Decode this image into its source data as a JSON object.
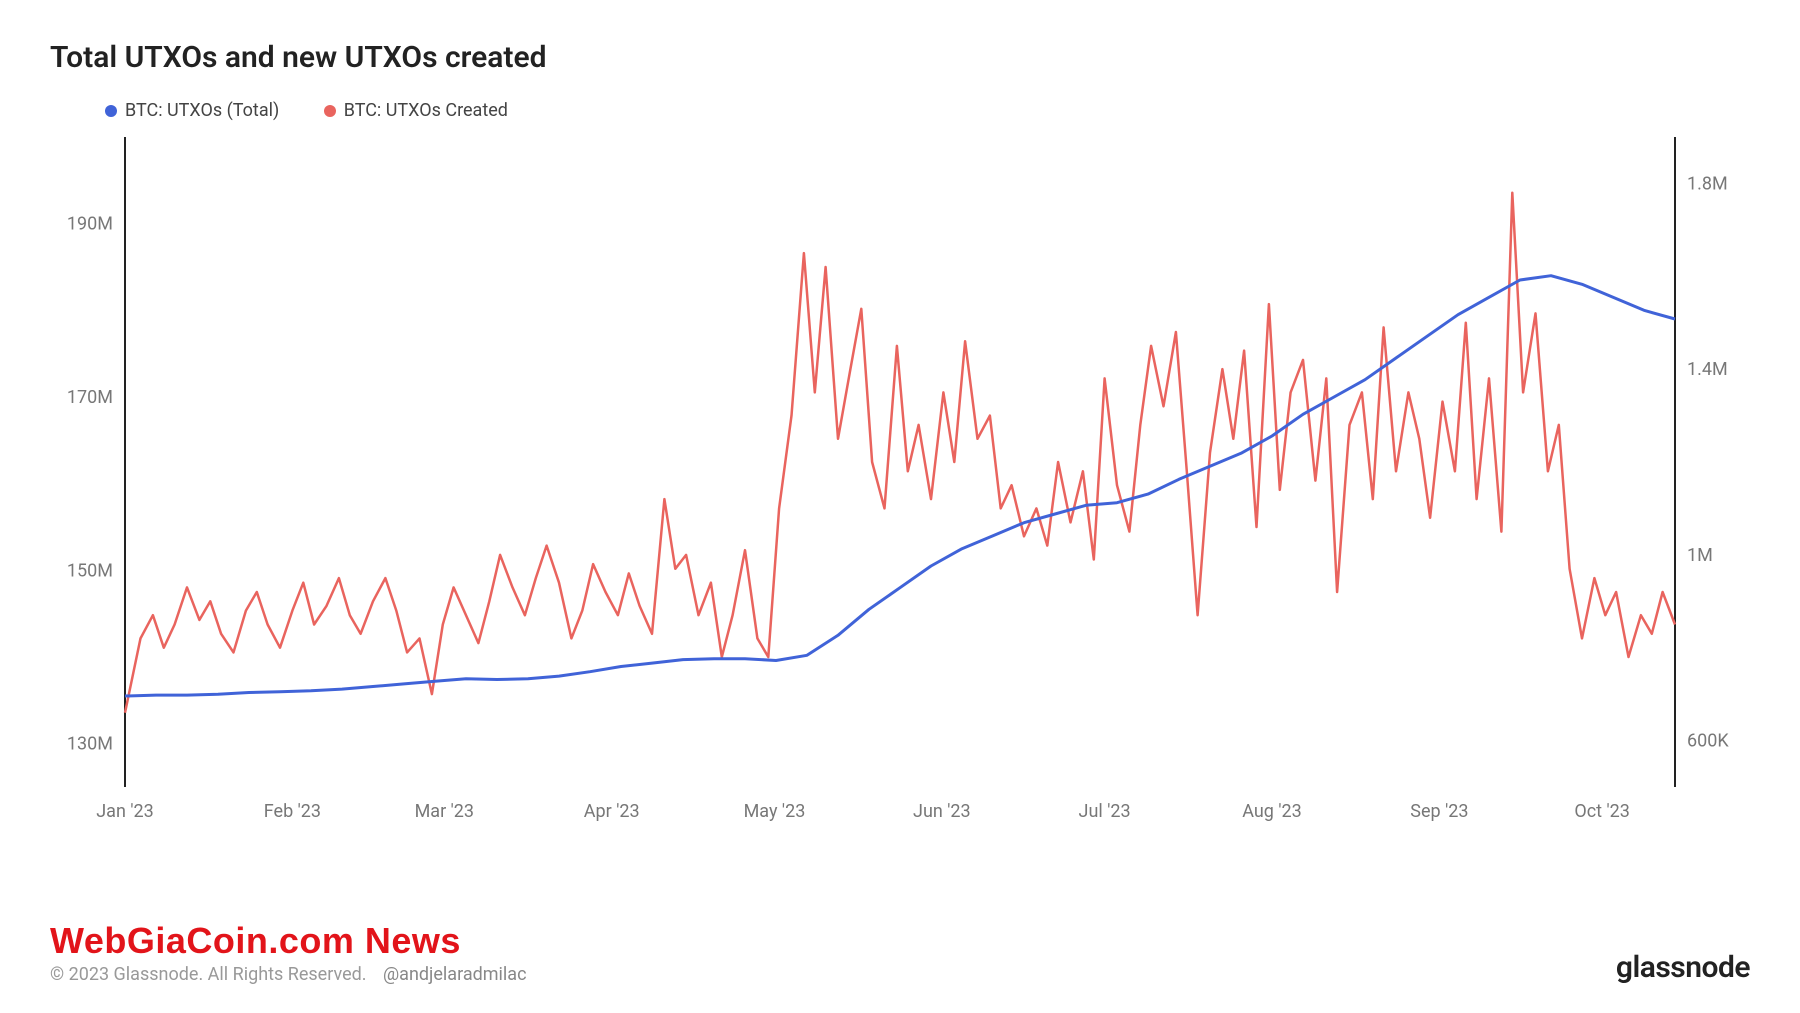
{
  "title": "Total UTXOs and new UTXOs created",
  "legend": {
    "series1": {
      "label": "BTC: UTXOs (Total)",
      "color": "#4063d8"
    },
    "series2": {
      "label": "BTC: UTXOs Created",
      "color": "#e9645e"
    }
  },
  "footer": {
    "overlay": "WebGiaCoin.com News",
    "copyright": "© 2023 Glassnode. All Rights Reserved.",
    "handle": "@andjelaradmilac",
    "brand": "glassnode"
  },
  "chart": {
    "type": "line-dual-axis",
    "background": "#ffffff",
    "axis_color": "#222222",
    "grid_color": "#eeeeee",
    "tick_color": "#777777",
    "label_fontsize": 18,
    "line_width_total": 3,
    "line_width_created": 2.5,
    "x": {
      "ticks": [
        "Jan '23",
        "Feb '23",
        "Mar '23",
        "Apr '23",
        "May '23",
        "Jun '23",
        "Jul '23",
        "Aug '23",
        "Sep '23",
        "Oct '23"
      ],
      "tick_positions": [
        0,
        0.108,
        0.206,
        0.314,
        0.419,
        0.527,
        0.632,
        0.74,
        0.848,
        0.953
      ]
    },
    "y_left": {
      "min": 125000000,
      "max": 200000000,
      "ticks": [
        130000000,
        150000000,
        170000000,
        190000000
      ],
      "tick_labels": [
        "130M",
        "150M",
        "170M",
        "190M"
      ]
    },
    "y_right": {
      "min": 500000,
      "max": 1900000,
      "ticks": [
        600000,
        1000000,
        1400000,
        1800000
      ],
      "tick_labels": [
        "600K",
        "1M",
        "1.4M",
        "1.8M"
      ]
    },
    "series_total": {
      "color": "#4063d8",
      "points": [
        [
          0.0,
          135500000
        ],
        [
          0.02,
          135600000
        ],
        [
          0.04,
          135600000
        ],
        [
          0.06,
          135700000
        ],
        [
          0.08,
          135900000
        ],
        [
          0.1,
          136000000
        ],
        [
          0.12,
          136100000
        ],
        [
          0.14,
          136300000
        ],
        [
          0.16,
          136600000
        ],
        [
          0.18,
          136900000
        ],
        [
          0.2,
          137200000
        ],
        [
          0.22,
          137500000
        ],
        [
          0.24,
          137400000
        ],
        [
          0.26,
          137500000
        ],
        [
          0.28,
          137800000
        ],
        [
          0.3,
          138300000
        ],
        [
          0.32,
          138900000
        ],
        [
          0.34,
          139300000
        ],
        [
          0.36,
          139700000
        ],
        [
          0.38,
          139800000
        ],
        [
          0.4,
          139800000
        ],
        [
          0.42,
          139600000
        ],
        [
          0.44,
          140200000
        ],
        [
          0.46,
          142500000
        ],
        [
          0.48,
          145500000
        ],
        [
          0.5,
          148000000
        ],
        [
          0.52,
          150500000
        ],
        [
          0.54,
          152500000
        ],
        [
          0.56,
          154000000
        ],
        [
          0.58,
          155500000
        ],
        [
          0.6,
          156500000
        ],
        [
          0.62,
          157500000
        ],
        [
          0.64,
          157800000
        ],
        [
          0.66,
          158800000
        ],
        [
          0.68,
          160500000
        ],
        [
          0.7,
          162000000
        ],
        [
          0.72,
          163500000
        ],
        [
          0.74,
          165500000
        ],
        [
          0.76,
          168000000
        ],
        [
          0.78,
          170000000
        ],
        [
          0.8,
          172000000
        ],
        [
          0.82,
          174500000
        ],
        [
          0.84,
          177000000
        ],
        [
          0.86,
          179500000
        ],
        [
          0.88,
          181500000
        ],
        [
          0.9,
          183500000
        ],
        [
          0.92,
          184000000
        ],
        [
          0.94,
          183000000
        ],
        [
          0.96,
          181500000
        ],
        [
          0.98,
          180000000
        ],
        [
          1.0,
          179000000
        ]
      ]
    },
    "series_created": {
      "color": "#e9645e",
      "points": [
        [
          0.0,
          660000
        ],
        [
          0.01,
          820000
        ],
        [
          0.018,
          870000
        ],
        [
          0.025,
          800000
        ],
        [
          0.032,
          850000
        ],
        [
          0.04,
          930000
        ],
        [
          0.048,
          860000
        ],
        [
          0.055,
          900000
        ],
        [
          0.062,
          830000
        ],
        [
          0.07,
          790000
        ],
        [
          0.078,
          880000
        ],
        [
          0.085,
          920000
        ],
        [
          0.092,
          850000
        ],
        [
          0.1,
          800000
        ],
        [
          0.108,
          880000
        ],
        [
          0.115,
          940000
        ],
        [
          0.122,
          850000
        ],
        [
          0.13,
          890000
        ],
        [
          0.138,
          950000
        ],
        [
          0.145,
          870000
        ],
        [
          0.152,
          830000
        ],
        [
          0.16,
          900000
        ],
        [
          0.168,
          950000
        ],
        [
          0.175,
          880000
        ],
        [
          0.182,
          790000
        ],
        [
          0.19,
          820000
        ],
        [
          0.198,
          700000
        ],
        [
          0.205,
          850000
        ],
        [
          0.212,
          930000
        ],
        [
          0.22,
          870000
        ],
        [
          0.228,
          810000
        ],
        [
          0.235,
          900000
        ],
        [
          0.242,
          1000000
        ],
        [
          0.25,
          930000
        ],
        [
          0.258,
          870000
        ],
        [
          0.265,
          950000
        ],
        [
          0.272,
          1020000
        ],
        [
          0.28,
          940000
        ],
        [
          0.288,
          820000
        ],
        [
          0.295,
          880000
        ],
        [
          0.302,
          980000
        ],
        [
          0.31,
          920000
        ],
        [
          0.318,
          870000
        ],
        [
          0.325,
          960000
        ],
        [
          0.332,
          890000
        ],
        [
          0.34,
          830000
        ],
        [
          0.348,
          1120000
        ],
        [
          0.355,
          970000
        ],
        [
          0.362,
          1000000
        ],
        [
          0.37,
          870000
        ],
        [
          0.378,
          940000
        ],
        [
          0.385,
          780000
        ],
        [
          0.392,
          870000
        ],
        [
          0.4,
          1010000
        ],
        [
          0.408,
          820000
        ],
        [
          0.415,
          780000
        ],
        [
          0.422,
          1100000
        ],
        [
          0.43,
          1300000
        ],
        [
          0.438,
          1650000
        ],
        [
          0.445,
          1350000
        ],
        [
          0.452,
          1620000
        ],
        [
          0.46,
          1250000
        ],
        [
          0.468,
          1400000
        ],
        [
          0.475,
          1530000
        ],
        [
          0.482,
          1200000
        ],
        [
          0.49,
          1100000
        ],
        [
          0.498,
          1450000
        ],
        [
          0.505,
          1180000
        ],
        [
          0.512,
          1280000
        ],
        [
          0.52,
          1120000
        ],
        [
          0.528,
          1350000
        ],
        [
          0.535,
          1200000
        ],
        [
          0.542,
          1460000
        ],
        [
          0.55,
          1250000
        ],
        [
          0.558,
          1300000
        ],
        [
          0.565,
          1100000
        ],
        [
          0.572,
          1150000
        ],
        [
          0.58,
          1040000
        ],
        [
          0.588,
          1100000
        ],
        [
          0.595,
          1020000
        ],
        [
          0.602,
          1200000
        ],
        [
          0.61,
          1070000
        ],
        [
          0.618,
          1180000
        ],
        [
          0.625,
          990000
        ],
        [
          0.632,
          1380000
        ],
        [
          0.64,
          1150000
        ],
        [
          0.648,
          1050000
        ],
        [
          0.655,
          1280000
        ],
        [
          0.662,
          1450000
        ],
        [
          0.67,
          1320000
        ],
        [
          0.678,
          1480000
        ],
        [
          0.685,
          1180000
        ],
        [
          0.692,
          870000
        ],
        [
          0.7,
          1220000
        ],
        [
          0.708,
          1400000
        ],
        [
          0.715,
          1250000
        ],
        [
          0.722,
          1440000
        ],
        [
          0.73,
          1060000
        ],
        [
          0.738,
          1540000
        ],
        [
          0.745,
          1140000
        ],
        [
          0.752,
          1350000
        ],
        [
          0.76,
          1420000
        ],
        [
          0.768,
          1160000
        ],
        [
          0.775,
          1380000
        ],
        [
          0.782,
          920000
        ],
        [
          0.79,
          1280000
        ],
        [
          0.798,
          1350000
        ],
        [
          0.805,
          1120000
        ],
        [
          0.812,
          1490000
        ],
        [
          0.82,
          1180000
        ],
        [
          0.828,
          1350000
        ],
        [
          0.835,
          1250000
        ],
        [
          0.842,
          1080000
        ],
        [
          0.85,
          1330000
        ],
        [
          0.858,
          1180000
        ],
        [
          0.865,
          1500000
        ],
        [
          0.872,
          1120000
        ],
        [
          0.88,
          1380000
        ],
        [
          0.888,
          1050000
        ],
        [
          0.895,
          1780000
        ],
        [
          0.902,
          1350000
        ],
        [
          0.91,
          1520000
        ],
        [
          0.918,
          1180000
        ],
        [
          0.925,
          1280000
        ],
        [
          0.932,
          970000
        ],
        [
          0.94,
          820000
        ],
        [
          0.948,
          950000
        ],
        [
          0.955,
          870000
        ],
        [
          0.962,
          920000
        ],
        [
          0.97,
          780000
        ],
        [
          0.978,
          870000
        ],
        [
          0.985,
          830000
        ],
        [
          0.992,
          920000
        ],
        [
          1.0,
          850000
        ]
      ]
    }
  }
}
